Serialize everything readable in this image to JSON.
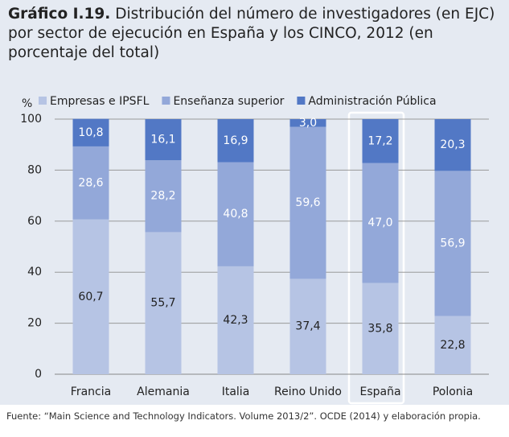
{
  "chart_data": {
    "type": "stacked_bar",
    "title_label": "Gráfico I.19.",
    "title": "Distribución del número de investigadores (en EJC) por sector de ejecución en España y los CINCO, 2012 (en porcentaje del total)",
    "y_unit": "%",
    "categories": [
      "Francia",
      "Alemania",
      "Italia",
      "Reino Unido",
      "España",
      "Polonia"
    ],
    "series": [
      {
        "name": "Empresas e IPSFL",
        "color": "#b6c4e4",
        "values": [
          60.7,
          55.7,
          42.3,
          37.4,
          35.8,
          22.8
        ],
        "value_labels": [
          "60,7",
          "55,7",
          "42,3",
          "37,4",
          "35,8",
          "22,8"
        ]
      },
      {
        "name": "Enseñanza superior",
        "color": "#93a8d9",
        "values": [
          28.6,
          28.2,
          40.8,
          59.6,
          47.0,
          56.9
        ],
        "value_labels": [
          "28,6",
          "28,2",
          "40,8",
          "59,6",
          "47,0",
          "56,9"
        ]
      },
      {
        "name": "Administración Pública",
        "color": "#5278c5",
        "values": [
          10.8,
          16.1,
          16.9,
          3.0,
          17.2,
          20.3
        ],
        "value_labels": [
          "10,8",
          "16,1",
          "16,9",
          "3,0",
          "17,2",
          "20,3"
        ]
      }
    ],
    "ylim": [
      0,
      100
    ],
    "yticks": [
      0,
      20,
      40,
      60,
      80,
      100
    ],
    "grid": true,
    "legend": "top",
    "source": "Fuente: “Main Science and Technology Indicators. Volume 2013/2”. OCDE (2014) y elaboración propia."
  }
}
